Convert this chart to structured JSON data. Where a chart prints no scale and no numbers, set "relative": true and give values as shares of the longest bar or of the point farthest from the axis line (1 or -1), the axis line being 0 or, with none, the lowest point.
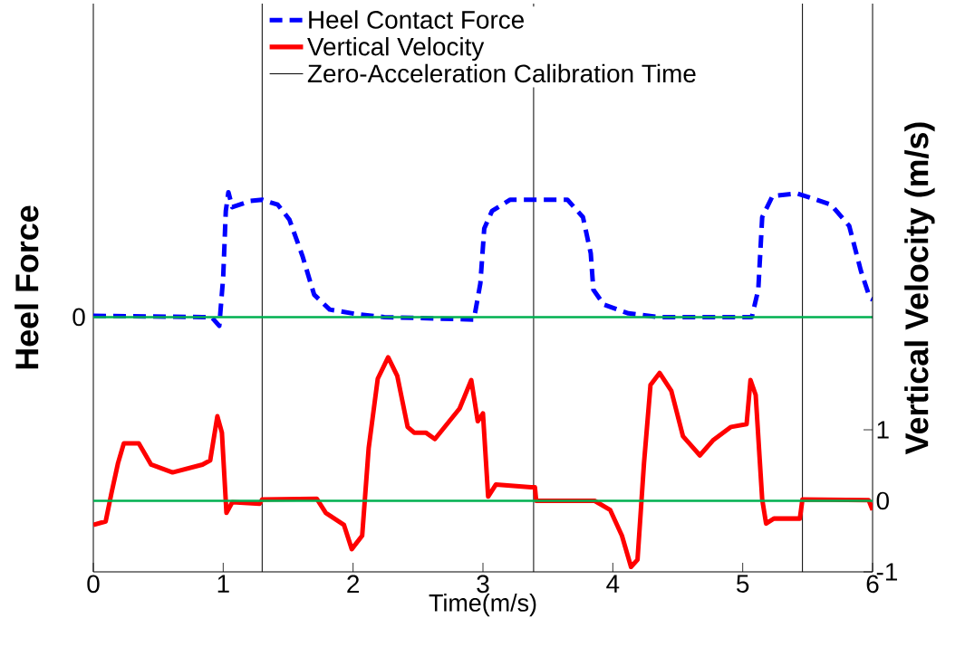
{
  "chart_data": [
    {
      "type": "line",
      "relative": true,
      "xlabel": "Time(m/s)",
      "ylabel": "Heel Force",
      "xlim": [
        0,
        6
      ],
      "xticks": [
        0,
        1,
        2,
        3,
        4,
        5,
        6
      ],
      "legend": "top",
      "annotations": [
        {
          "text": "0",
          "x": 0,
          "y": 0
        }
      ],
      "series": [
        {
          "name": "Heel Contact Force",
          "color": "#0000ff",
          "line_style": "dashed",
          "x": [
            0,
            0.84,
            0.91,
            0.97,
            1.0,
            1.02,
            1.04,
            1.07,
            1.21,
            1.3,
            1.42,
            1.51,
            1.61,
            1.7,
            1.82,
            2.05,
            2.24,
            2.93,
            2.98,
            3.01,
            3.07,
            3.21,
            3.65,
            3.77,
            3.83,
            3.85,
            3.93,
            4.12,
            4.35,
            5.07,
            5.12,
            5.15,
            5.23,
            5.42,
            5.68,
            5.82,
            5.91,
            5.98,
            6.0
          ],
          "values": [
            0.01,
            0,
            0,
            -0.07,
            0.32,
            0.85,
            1.0,
            0.88,
            0.93,
            0.94,
            0.9,
            0.78,
            0.49,
            0.18,
            0.06,
            0.02,
            0,
            -0.02,
            0.27,
            0.71,
            0.85,
            0.94,
            0.94,
            0.8,
            0.51,
            0.22,
            0.1,
            0.03,
            0,
            0,
            0.22,
            0.8,
            0.97,
            0.99,
            0.9,
            0.73,
            0.37,
            0.15,
            0.14
          ]
        }
      ],
      "ref_lines": [
        {
          "axis": "x",
          "value": 1.3,
          "label": "Zero-Acceleration Calibration Time",
          "color": "#000000"
        },
        {
          "axis": "x",
          "value": 3.39,
          "color": "#000000"
        },
        {
          "axis": "x",
          "value": 5.46,
          "color": "#000000"
        },
        {
          "axis": "y",
          "value": 0,
          "color": "#00b050"
        }
      ]
    },
    {
      "type": "line",
      "ylabel": "Vertical Velocity (m/s)",
      "xlim": [
        0,
        6
      ],
      "ylim": [
        -1,
        7
      ],
      "yticks": [
        -1,
        0,
        1
      ],
      "tick_labels": "y",
      "series": [
        {
          "name": "Vertical Velocity",
          "color": "#ff0000",
          "line_style": "solid",
          "x": [
            0,
            0.095,
            0.14,
            0.19,
            0.235,
            0.35,
            0.445,
            0.61,
            0.84,
            0.9,
            0.955,
            0.99,
            1.025,
            1.07,
            1.28,
            1.3,
            1.72,
            1.79,
            1.93,
            1.99,
            2.07,
            2.12,
            2.19,
            2.27,
            2.34,
            2.42,
            2.47,
            2.56,
            2.63,
            2.82,
            2.91,
            2.96,
            3.0,
            3.04,
            3.1,
            3.37,
            3.4,
            3.41,
            3.86,
            3.98,
            4.07,
            4.14,
            4.19,
            4.24,
            4.29,
            4.36,
            4.45,
            4.54,
            4.67,
            4.77,
            4.91,
            5.03,
            5.06,
            5.1,
            5.15,
            5.18,
            5.24,
            5.44,
            5.46,
            5.97,
            6.0
          ],
          "values": [
            -0.34,
            -0.29,
            0.11,
            0.53,
            0.81,
            0.81,
            0.51,
            0.4,
            0.51,
            0.57,
            1.19,
            0.96,
            -0.17,
            -0.02,
            -0.04,
            0.02,
            0.03,
            -0.17,
            -0.34,
            -0.68,
            -0.49,
            0.74,
            1.72,
            2.02,
            1.76,
            1.04,
            0.96,
            0.96,
            0.87,
            1.3,
            1.7,
            1.12,
            1.23,
            0.06,
            0.23,
            0.19,
            0.19,
            0,
            0,
            -0.13,
            -0.49,
            -0.93,
            -0.83,
            0.53,
            1.63,
            1.8,
            1.55,
            0.91,
            0.64,
            0.85,
            1.04,
            1.08,
            1.7,
            1.49,
            0.02,
            -0.32,
            -0.25,
            -0.25,
            0.02,
            0.01,
            -0.13
          ]
        }
      ],
      "ref_lines": [
        {
          "axis": "y",
          "value": 0,
          "color": "#00b050"
        }
      ]
    }
  ]
}
